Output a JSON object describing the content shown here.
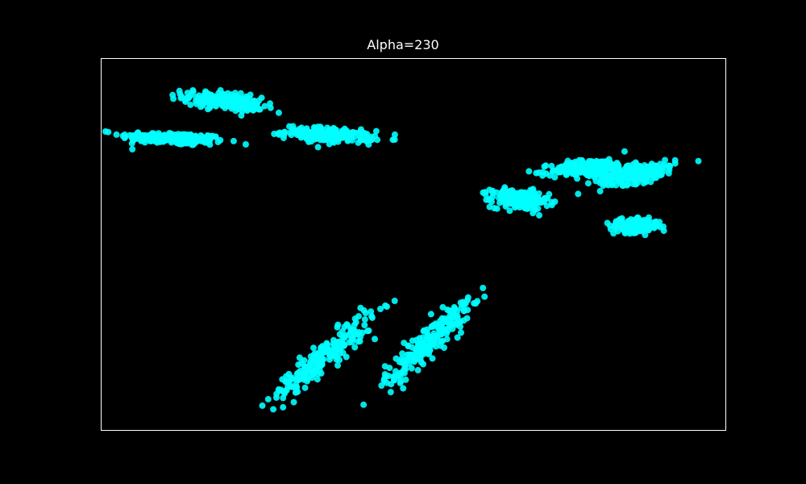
{
  "chart_data": {
    "type": "scatter",
    "title": "Alpha=230",
    "xlabel": "",
    "ylabel": "",
    "xlim": [
      0,
      100
    ],
    "ylim": [
      0,
      100
    ],
    "grid": false,
    "axis_ticks": false,
    "background_color": "#000000",
    "axes_edge_color": "#ffffff",
    "marker_color": "#00ffff",
    "alpha": 230,
    "clusters": [
      {
        "cx": 11.5,
        "cy": 78.5,
        "sx": 4.2,
        "sy": 0.9,
        "rho": -0.4,
        "n": 220
      },
      {
        "cx": 19.5,
        "cy": 88.5,
        "sx": 3.2,
        "sy": 1.3,
        "rho": -0.5,
        "n": 200
      },
      {
        "cx": 36.5,
        "cy": 79.5,
        "sx": 3.5,
        "sy": 1.0,
        "rho": -0.4,
        "n": 220
      },
      {
        "cx": 67.0,
        "cy": 62.0,
        "sx": 2.3,
        "sy": 1.3,
        "rho": -0.2,
        "n": 220
      },
      {
        "cx": 78.5,
        "cy": 70.5,
        "sx": 3.2,
        "sy": 1.2,
        "rho": 0.3,
        "n": 220
      },
      {
        "cx": 86.0,
        "cy": 69.0,
        "sx": 3.0,
        "sy": 1.5,
        "rho": 0.6,
        "n": 200
      },
      {
        "cx": 85.5,
        "cy": 55.0,
        "sx": 2.0,
        "sy": 0.9,
        "rho": -0.1,
        "n": 180
      },
      {
        "cx": 35.5,
        "cy": 19.5,
        "sx": 4.0,
        "sy": 5.8,
        "rho": 0.93,
        "n": 220
      },
      {
        "cx": 52.5,
        "cy": 24.0,
        "sx": 3.5,
        "sy": 6.0,
        "rho": 0.92,
        "n": 220
      }
    ]
  }
}
